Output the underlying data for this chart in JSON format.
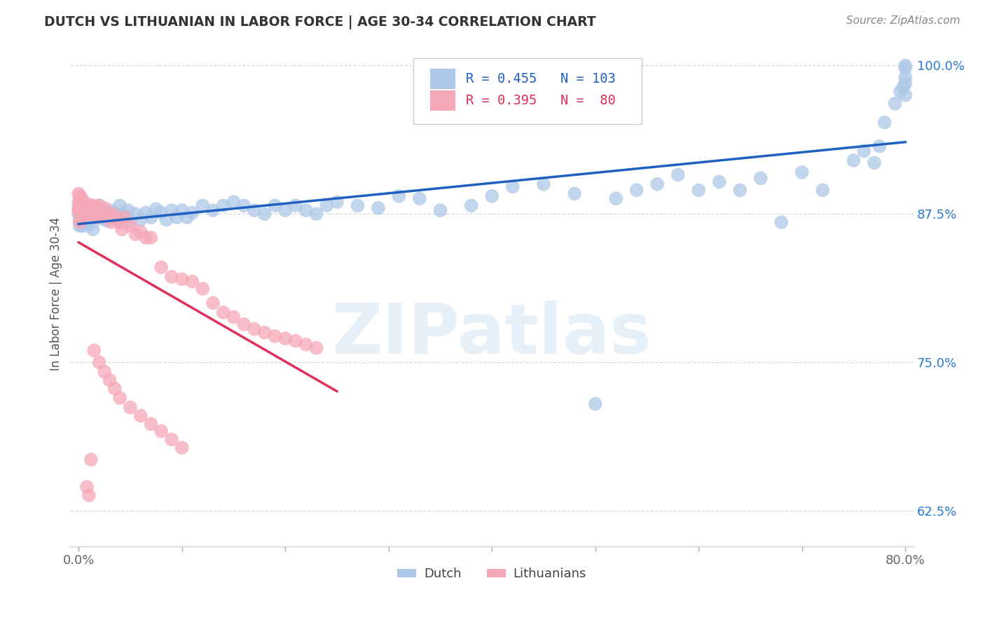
{
  "title": "DUTCH VS LITHUANIAN IN LABOR FORCE | AGE 30-34 CORRELATION CHART",
  "source": "Source: ZipAtlas.com",
  "ylabel": "In Labor Force | Age 30-34",
  "watermark": "ZIPatlas",
  "xlim": [
    -0.008,
    0.808
  ],
  "ylim": [
    0.595,
    1.02
  ],
  "xticks": [
    0.0,
    0.1,
    0.2,
    0.3,
    0.4,
    0.5,
    0.6,
    0.7,
    0.8
  ],
  "xticklabels": [
    "0.0%",
    "",
    "",
    "",
    "",
    "",
    "",
    "",
    "80.0%"
  ],
  "yticks": [
    0.625,
    0.75,
    0.875,
    1.0
  ],
  "yticklabels": [
    "62.5%",
    "75.0%",
    "87.5%",
    "100.0%"
  ],
  "dutch_R": 0.455,
  "dutch_N": 103,
  "lith_R": 0.395,
  "lith_N": 80,
  "dutch_color": "#adc8e8",
  "dutch_line_color": "#2060c0",
  "lith_color": "#f5a8b8",
  "lith_line_color": "#e0305a",
  "background_color": "#ffffff",
  "grid_color": "#d8d8d8",
  "title_color": "#333333",
  "axis_label_color": "#555555",
  "tick_color_y": "#2979d0",
  "tick_color_x": "#666666",
  "source_color": "#888888"
}
